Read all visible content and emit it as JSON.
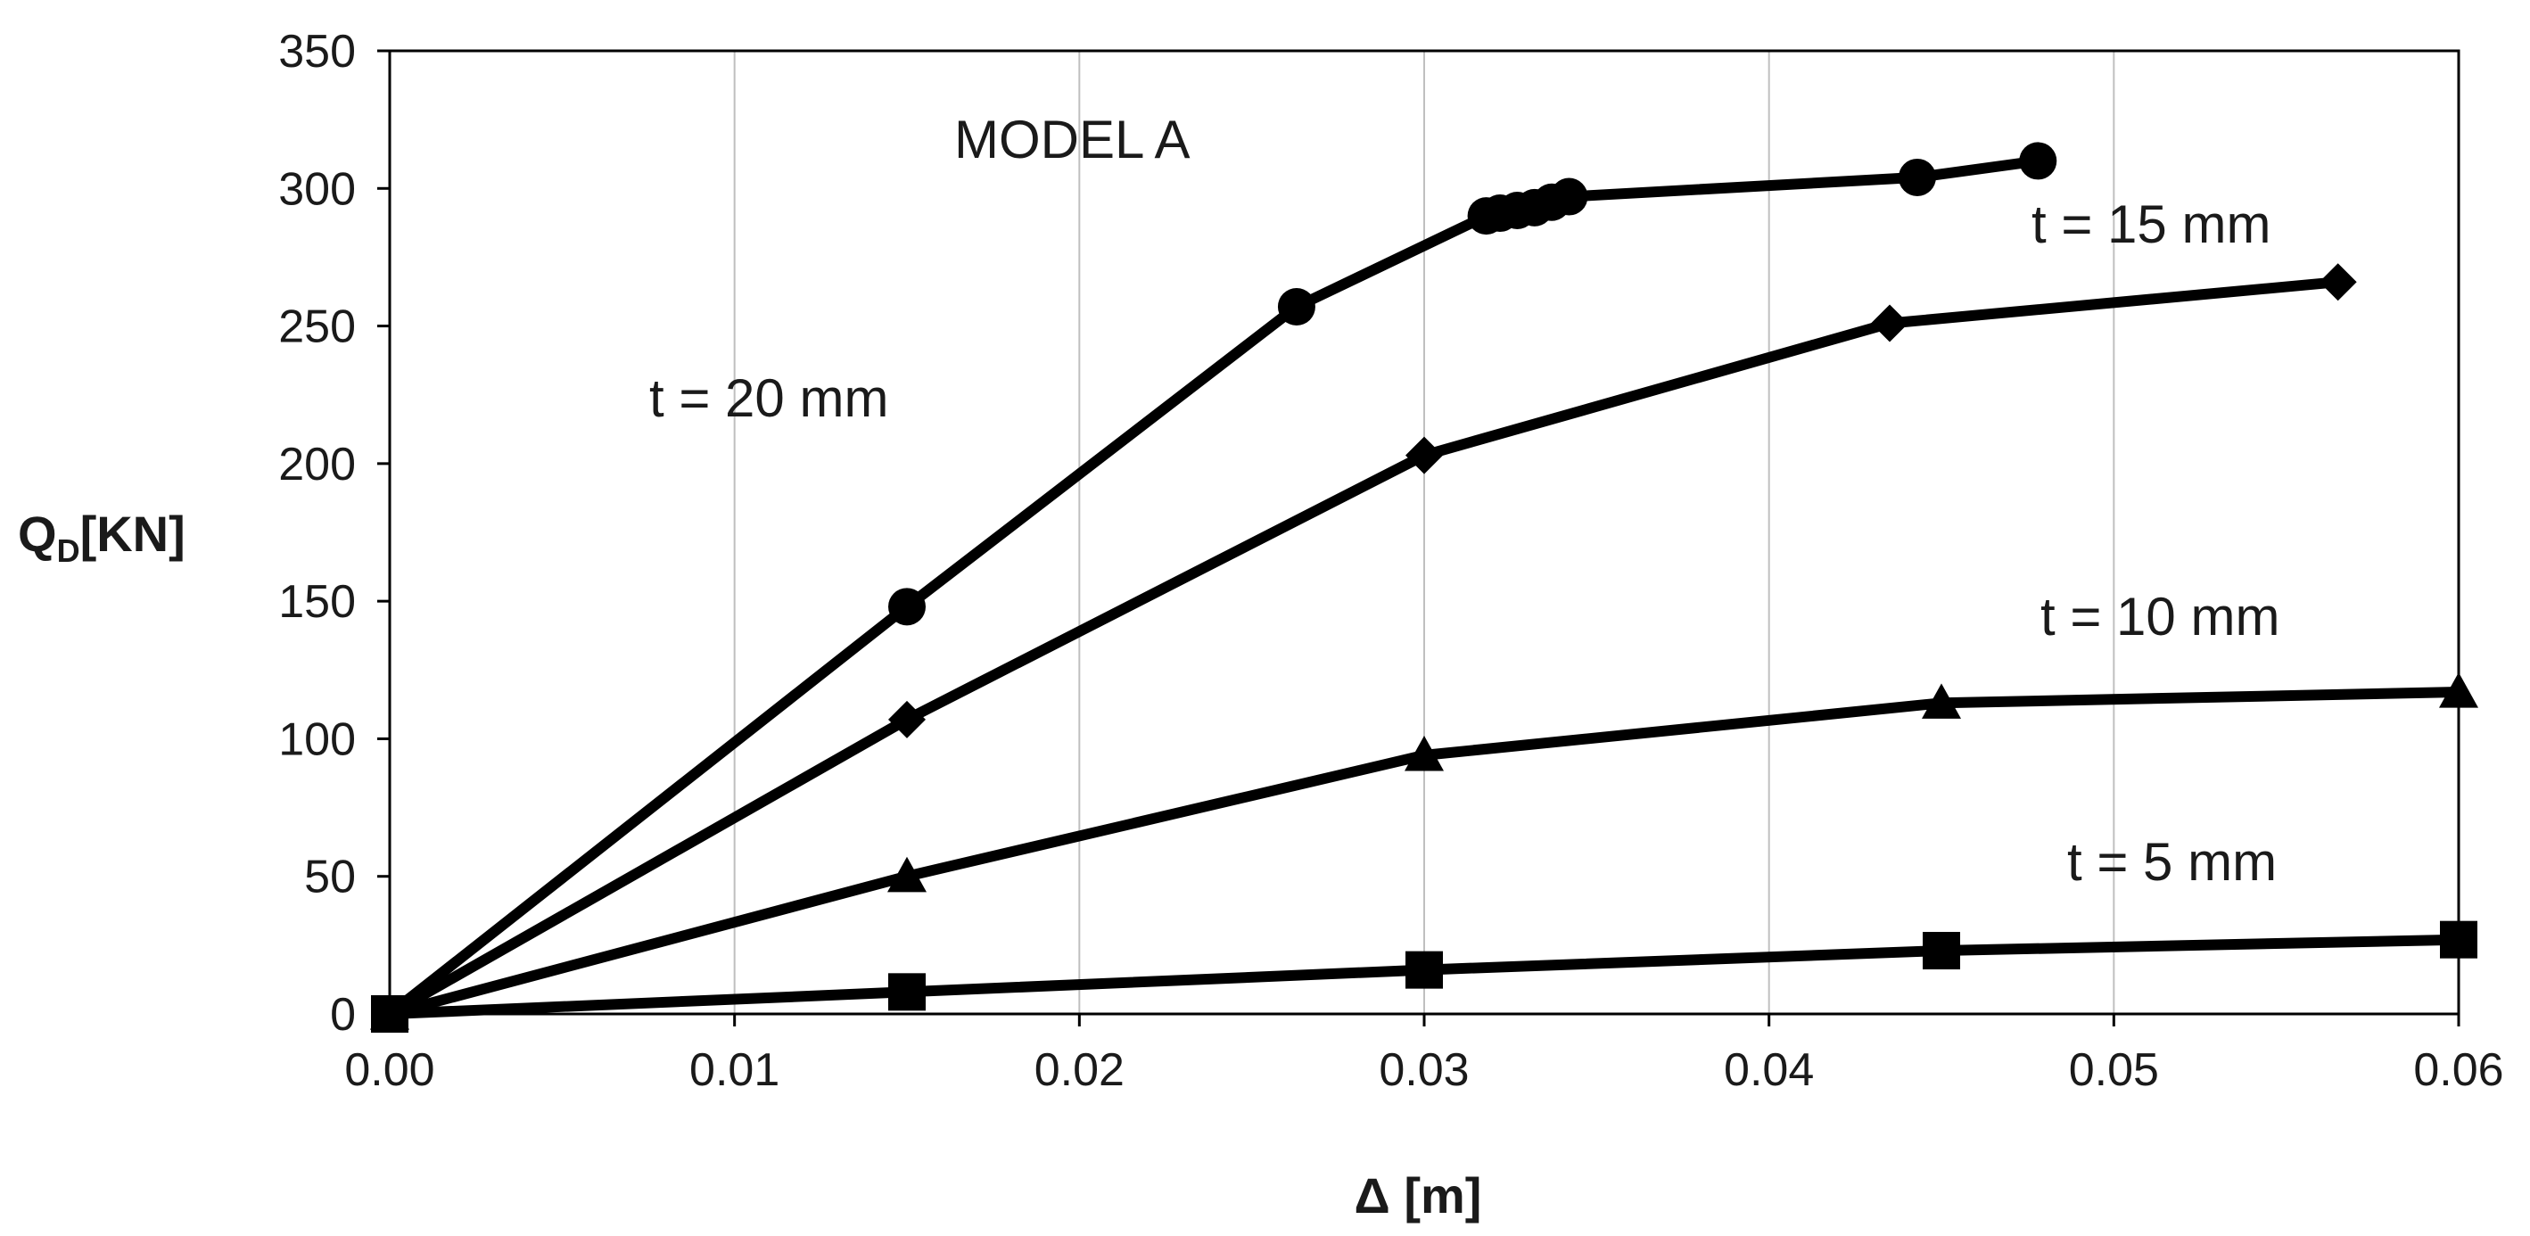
{
  "chart_data": {
    "type": "line",
    "title": "MODEL  A",
    "xlabel": "Δ [m]",
    "ylabel": "Q",
    "ylabel_subscript": "D",
    "ylabel_unit": "[KN]",
    "xlim": [
      0,
      0.06
    ],
    "ylim": [
      0,
      350
    ],
    "x_ticks": [
      0.0,
      0.01,
      0.02,
      0.03,
      0.04,
      0.05,
      0.06
    ],
    "x_tick_labels": [
      "0.00",
      "0.01",
      "0.02",
      "0.03",
      "0.04",
      "0.05",
      "0.06"
    ],
    "y_ticks": [
      0,
      50,
      100,
      150,
      200,
      250,
      300,
      350
    ],
    "y_tick_labels": [
      "0",
      "50",
      "100",
      "150",
      "200",
      "250",
      "300",
      "350"
    ],
    "grid": "vertical",
    "series": [
      {
        "name": "t = 20 mm",
        "marker": "circle",
        "x": [
          0,
          0.015,
          0.0263,
          0.0318,
          0.0322,
          0.0327,
          0.0332,
          0.0337,
          0.0342,
          0.0443,
          0.0478
        ],
        "y": [
          0,
          148,
          257,
          290,
          291,
          292,
          293,
          295,
          297,
          304,
          310
        ]
      },
      {
        "name": "t = 15 mm",
        "marker": "diamond",
        "x": [
          0,
          0.015,
          0.03,
          0.0435,
          0.0565
        ],
        "y": [
          0,
          107,
          203,
          251,
          266
        ]
      },
      {
        "name": "t = 10 mm",
        "marker": "triangle",
        "x": [
          0,
          0.015,
          0.03,
          0.045,
          0.06
        ],
        "y": [
          0,
          50,
          94,
          113,
          117
        ]
      },
      {
        "name": "t = 5 mm",
        "marker": "square",
        "x": [
          0,
          0.015,
          0.03,
          0.045,
          0.06
        ],
        "y": [
          0,
          8,
          16,
          23,
          27
        ]
      }
    ],
    "annotations": [
      "MODEL  A",
      "t = 20 mm",
      "t = 15 mm",
      "t = 10 mm",
      "t = 5 mm"
    ]
  }
}
